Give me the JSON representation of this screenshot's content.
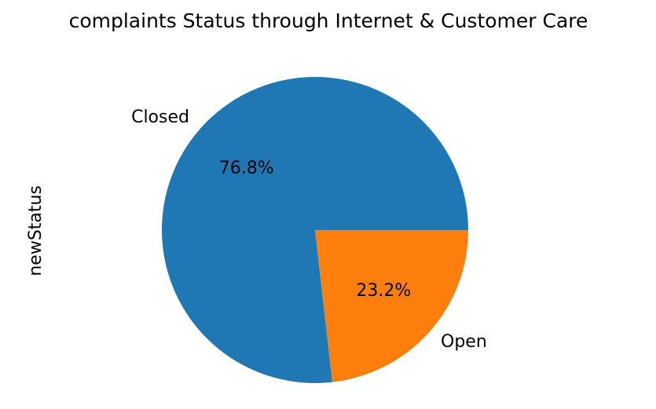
{
  "chart_data": {
    "type": "pie",
    "title": "complaints Status through Internet & Customer Care",
    "ylabel": "newStatus",
    "categories": [
      "Closed",
      "Open"
    ],
    "values": [
      76.8,
      23.2
    ],
    "value_labels": [
      "76.8%",
      "23.2%"
    ],
    "colors": [
      "#1f77b4",
      "#ff7f0e"
    ]
  }
}
